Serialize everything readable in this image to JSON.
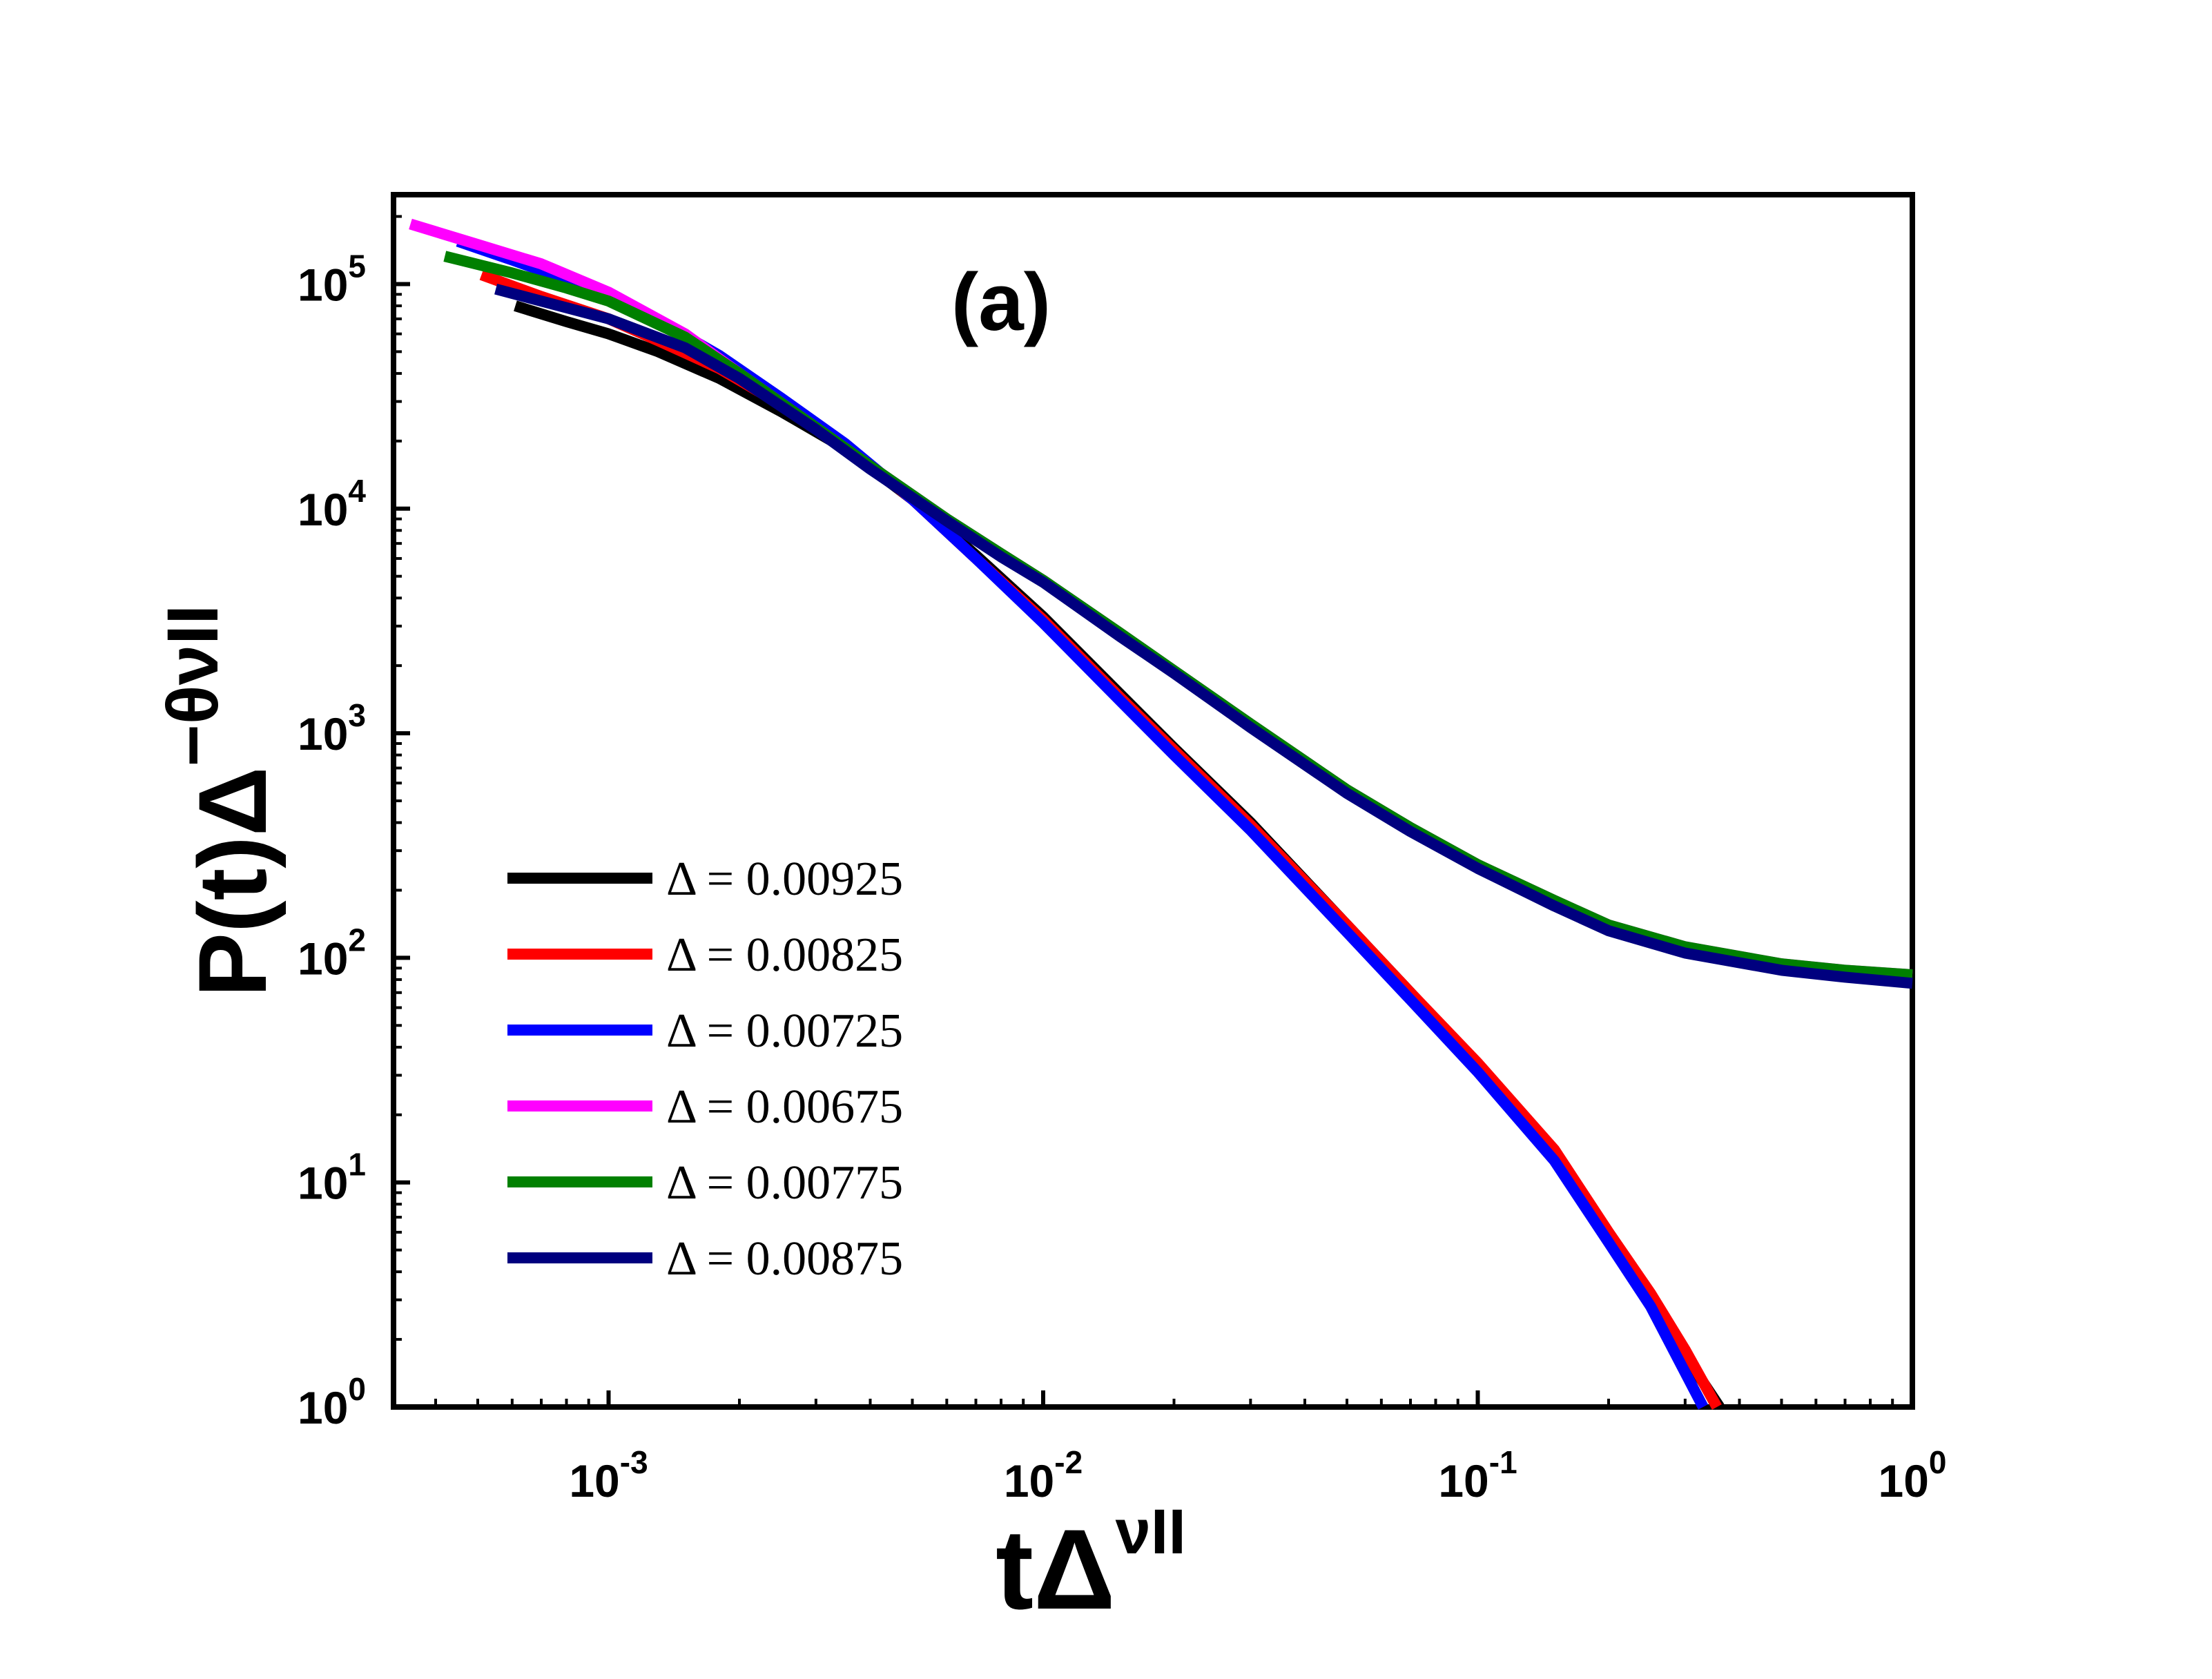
{
  "chart_data": {
    "type": "line",
    "title": "",
    "panel_label": "(a)",
    "xscale": "log",
    "yscale": "log",
    "xlim": [
      0.00032,
      1.0
    ],
    "ylim": [
      1,
      250000
    ],
    "grid": false,
    "xlabel": {
      "base": "tΔ",
      "sup": "νII"
    },
    "ylabel": {
      "base": "P(t)Δ",
      "sup": "−θνII"
    },
    "x_ticks": [
      {
        "value": 0.001,
        "base": "10",
        "exp": "-3"
      },
      {
        "value": 0.01,
        "base": "10",
        "exp": "-2"
      },
      {
        "value": 0.1,
        "base": "10",
        "exp": "-1"
      },
      {
        "value": 1,
        "base": "10",
        "exp": "0"
      }
    ],
    "y_ticks": [
      {
        "value": 1,
        "base": "10",
        "exp": "0"
      },
      {
        "value": 10,
        "base": "10",
        "exp": "1"
      },
      {
        "value": 100,
        "base": "10",
        "exp": "2"
      },
      {
        "value": 1000,
        "base": "10",
        "exp": "3"
      },
      {
        "value": 10000,
        "base": "10",
        "exp": "4"
      },
      {
        "value": 100000,
        "base": "10",
        "exp": "5"
      }
    ],
    "legend_position": "lower-left",
    "series": [
      {
        "name": "Δ = 0.00925",
        "color": "#000000",
        "x": [
          0.00061,
          0.0008,
          0.001,
          0.0013,
          0.0018,
          0.0025,
          0.0035,
          0.005,
          0.007,
          0.01,
          0.015,
          0.02,
          0.03,
          0.05,
          0.07,
          0.1,
          0.15,
          0.2,
          0.25,
          0.3,
          0.36
        ],
        "y": [
          80000,
          68000,
          60000,
          50000,
          38000,
          27000,
          18500,
          11000,
          6200,
          3300,
          1500,
          860,
          400,
          140,
          70,
          33,
          13,
          5.8,
          3.1,
          1.7,
          1.0
        ]
      },
      {
        "name": "Δ = 0.00825",
        "color": "#ff0000",
        "x": [
          0.00051,
          0.0007,
          0.001,
          0.0013,
          0.0018,
          0.0025,
          0.0035,
          0.005,
          0.007,
          0.01,
          0.015,
          0.02,
          0.03,
          0.05,
          0.07,
          0.1,
          0.15,
          0.2,
          0.25,
          0.3,
          0.355
        ],
        "y": [
          110000,
          88000,
          70000,
          56000,
          42000,
          29000,
          19000,
          11000,
          6000,
          3200,
          1450,
          840,
          390,
          140,
          70,
          34,
          14,
          6.0,
          3.2,
          1.8,
          1.0
        ]
      },
      {
        "name": "Δ = 0.00725",
        "color": "#0000ff",
        "x": [
          0.00045,
          0.0006,
          0.0008,
          0.001,
          0.0013,
          0.0018,
          0.0025,
          0.0035,
          0.005,
          0.007,
          0.01,
          0.015,
          0.02,
          0.03,
          0.05,
          0.07,
          0.1,
          0.15,
          0.2,
          0.25,
          0.33
        ],
        "y": [
          155000,
          128000,
          105000,
          88000,
          69000,
          48000,
          31000,
          19500,
          11000,
          6000,
          3100,
          1400,
          800,
          370,
          130,
          65,
          31,
          12.5,
          5.4,
          2.8,
          1.0
        ]
      },
      {
        "name": "Δ = 0.00675",
        "color": "#ff00ff",
        "x": [
          0.00035,
          0.0005,
          0.0007,
          0.001,
          0.0015,
          0.002,
          0.003,
          0.004,
          0.006,
          0.008,
          0.01,
          0.015,
          0.02,
          0.03,
          0.05,
          0.07,
          0.1,
          0.15,
          0.2,
          0.3,
          0.5,
          0.7,
          1.0
        ],
        "y": [
          185000,
          150000,
          123000,
          92000,
          60000,
          40000,
          23000,
          15500,
          9000,
          6300,
          4800,
          2800,
          1900,
          1100,
          560,
          380,
          260,
          180,
          140,
          112,
          94,
          88,
          84
        ]
      },
      {
        "name": "Δ = 0.00775",
        "color": "#008000",
        "x": [
          0.00042,
          0.0006,
          0.0008,
          0.001,
          0.0015,
          0.002,
          0.003,
          0.004,
          0.006,
          0.008,
          0.01,
          0.015,
          0.02,
          0.03,
          0.05,
          0.07,
          0.1,
          0.15,
          0.2,
          0.3,
          0.5,
          0.7,
          1.0
        ],
        "y": [
          133000,
          112000,
          96000,
          84000,
          58000,
          40000,
          23000,
          15500,
          9000,
          6300,
          4800,
          2800,
          1900,
          1100,
          560,
          380,
          260,
          180,
          140,
          112,
          94,
          88,
          84
        ]
      },
      {
        "name": "Δ = 0.00875",
        "color": "#00007f",
        "x": [
          0.00055,
          0.0007,
          0.001,
          0.0015,
          0.002,
          0.003,
          0.004,
          0.006,
          0.008,
          0.01,
          0.015,
          0.02,
          0.03,
          0.05,
          0.07,
          0.1,
          0.15,
          0.2,
          0.3,
          0.5,
          0.7,
          1.0
        ],
        "y": [
          95000,
          84000,
          70000,
          52000,
          38000,
          22500,
          15000,
          8800,
          6100,
          4700,
          2700,
          1850,
          1060,
          540,
          365,
          250,
          170,
          132,
          105,
          88,
          82,
          77
        ]
      }
    ]
  }
}
